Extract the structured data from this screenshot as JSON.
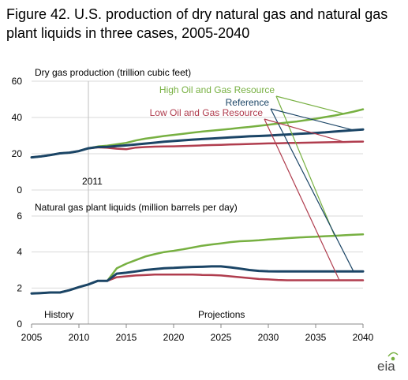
{
  "figure": {
    "title": "Figure 42. U.S. production of dry natural gas and natural gas plant liquids in three cases, 2005-2040",
    "logo_text": "eia"
  },
  "colors": {
    "high": "#77b041",
    "reference": "#1b4566",
    "low": "#b03d4e",
    "grid": "#d9d9d9",
    "divider": "#bfbfbf"
  },
  "chart_data": [
    {
      "type": "line",
      "title": "Dry gas production (trillion cubic feet)",
      "xlim": [
        2005,
        2040
      ],
      "ylim": [
        0,
        60
      ],
      "yticks": [
        0,
        20,
        40,
        60
      ],
      "annotation": "2011",
      "legend": [
        "High Oil and Gas Resource",
        "Reference",
        "Low Oil and Gas Resource"
      ],
      "x": [
        2005,
        2006,
        2007,
        2008,
        2009,
        2010,
        2011,
        2012,
        2013,
        2014,
        2015,
        2016,
        2017,
        2018,
        2019,
        2020,
        2021,
        2022,
        2023,
        2024,
        2025,
        2026,
        2027,
        2028,
        2029,
        2030,
        2031,
        2032,
        2033,
        2034,
        2035,
        2036,
        2037,
        2038,
        2039,
        2040
      ],
      "series": [
        {
          "name": "High Oil and Gas Resource",
          "key": "high",
          "values": [
            18,
            18.5,
            19.3,
            20.2,
            20.6,
            21.5,
            23,
            24,
            24.5,
            25.2,
            26,
            27.3,
            28.3,
            29,
            29.8,
            30.4,
            31,
            31.6,
            32.2,
            32.7,
            33.2,
            33.7,
            34.3,
            34.8,
            35.4,
            36,
            36.6,
            37.2,
            37.8,
            38.5,
            39.3,
            40.2,
            41.1,
            42.1,
            43.2,
            44.5
          ]
        },
        {
          "name": "Reference",
          "key": "reference",
          "values": [
            18,
            18.5,
            19.3,
            20.2,
            20.6,
            21.5,
            23,
            23.7,
            23.8,
            24.2,
            24.6,
            25.1,
            25.6,
            26.1,
            26.6,
            27,
            27.4,
            27.8,
            28.1,
            28.4,
            28.7,
            29,
            29.3,
            29.6,
            29.8,
            30,
            30.3,
            30.6,
            30.9,
            31.2,
            31.5,
            31.8,
            32.2,
            32.6,
            33,
            33.4
          ]
        },
        {
          "name": "Low Oil and Gas Resource",
          "key": "low",
          "values": [
            18,
            18.5,
            19.3,
            20.2,
            20.6,
            21.5,
            23,
            23.5,
            23.3,
            22.8,
            22.5,
            23.4,
            23.7,
            23.9,
            24,
            24.1,
            24.2,
            24.4,
            24.6,
            24.8,
            24.9,
            25.1,
            25.2,
            25.4,
            25.5,
            25.7,
            25.8,
            25.9,
            26,
            26.1,
            26.2,
            26.3,
            26.4,
            26.5,
            26.6,
            26.7
          ]
        }
      ]
    },
    {
      "type": "line",
      "title": "Natural gas plant liquids (million barrels per day)",
      "xlim": [
        2005,
        2040
      ],
      "ylim": [
        0,
        6
      ],
      "yticks": [
        0,
        2,
        4,
        6
      ],
      "xticks": [
        2005,
        2010,
        2015,
        2020,
        2025,
        2030,
        2035,
        2040
      ],
      "history_label": "History",
      "projections_label": "Projections",
      "divider_x": 2011,
      "x": [
        2005,
        2006,
        2007,
        2008,
        2009,
        2010,
        2011,
        2012,
        2013,
        2014,
        2015,
        2016,
        2017,
        2018,
        2019,
        2020,
        2021,
        2022,
        2023,
        2024,
        2025,
        2026,
        2027,
        2028,
        2029,
        2030,
        2031,
        2032,
        2033,
        2034,
        2035,
        2036,
        2037,
        2038,
        2039,
        2040
      ],
      "series": [
        {
          "name": "High Oil and Gas Resource",
          "key": "high",
          "values": [
            1.7,
            1.72,
            1.75,
            1.75,
            1.88,
            2.05,
            2.2,
            2.4,
            2.4,
            3.1,
            3.35,
            3.55,
            3.75,
            3.88,
            4.0,
            4.07,
            4.15,
            4.25,
            4.35,
            4.42,
            4.48,
            4.55,
            4.6,
            4.62,
            4.65,
            4.7,
            4.73,
            4.77,
            4.8,
            4.83,
            4.85,
            4.88,
            4.9,
            4.93,
            4.96,
            4.98
          ]
        },
        {
          "name": "Reference",
          "key": "reference",
          "values": [
            1.7,
            1.72,
            1.75,
            1.75,
            1.88,
            2.05,
            2.2,
            2.4,
            2.4,
            2.8,
            2.85,
            2.92,
            3.0,
            3.05,
            3.1,
            3.12,
            3.15,
            3.17,
            3.18,
            3.2,
            3.2,
            3.15,
            3.08,
            3.0,
            2.95,
            2.93,
            2.92,
            2.92,
            2.92,
            2.92,
            2.92,
            2.92,
            2.92,
            2.92,
            2.92,
            2.92
          ]
        },
        {
          "name": "Low Oil and Gas Resource",
          "key": "low",
          "values": [
            1.7,
            1.72,
            1.75,
            1.75,
            1.88,
            2.05,
            2.2,
            2.4,
            2.4,
            2.6,
            2.65,
            2.7,
            2.72,
            2.75,
            2.75,
            2.75,
            2.75,
            2.75,
            2.73,
            2.72,
            2.7,
            2.65,
            2.6,
            2.55,
            2.5,
            2.48,
            2.45,
            2.43,
            2.43,
            2.43,
            2.43,
            2.43,
            2.43,
            2.43,
            2.43,
            2.43
          ]
        }
      ]
    }
  ]
}
